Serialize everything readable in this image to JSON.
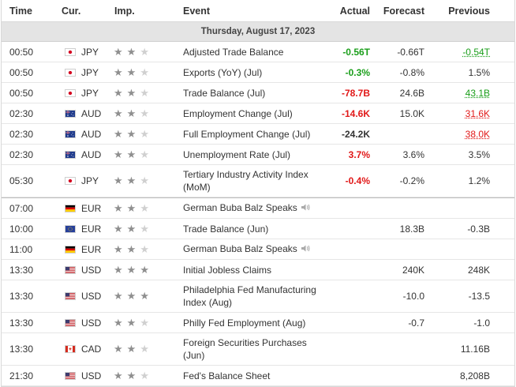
{
  "header": {
    "time": "Time",
    "cur": "Cur.",
    "imp": "Imp.",
    "event": "Event",
    "actual": "Actual",
    "forecast": "Forecast",
    "previous": "Previous"
  },
  "date_label": "Thursday, August 17, 2023",
  "icons": {
    "star": "star-icon",
    "speaker": "speaker-icon"
  },
  "colors": {
    "positive": "#1a9e1a",
    "negative": "#e11818",
    "star_on": "#8f8f8f",
    "star_off": "#d0d0d0"
  },
  "rows": [
    {
      "time": "00:50",
      "cur": "JPY",
      "flag": "jp",
      "stars": 2,
      "event": "Adjusted Trade Balance",
      "actual": "-0.56T",
      "actual_tone": "pos",
      "forecast": "-0.66T",
      "previous": "-0.54T",
      "prev_tone": "pos"
    },
    {
      "time": "00:50",
      "cur": "JPY",
      "flag": "jp",
      "stars": 2,
      "event": "Exports (YoY) (Jul)",
      "actual": "-0.3%",
      "actual_tone": "pos",
      "forecast": "-0.8%",
      "previous": "1.5%",
      "prev_tone": ""
    },
    {
      "time": "00:50",
      "cur": "JPY",
      "flag": "jp",
      "stars": 2,
      "event": "Trade Balance (Jul)",
      "actual": "-78.7B",
      "actual_tone": "neg",
      "forecast": "24.6B",
      "previous": "43.1B",
      "prev_tone": "pos"
    },
    {
      "time": "02:30",
      "cur": "AUD",
      "flag": "au",
      "stars": 2,
      "event": "Employment Change (Jul)",
      "actual": "-14.6K",
      "actual_tone": "neg",
      "forecast": "15.0K",
      "previous": "31.6K",
      "prev_tone": "neg"
    },
    {
      "time": "02:30",
      "cur": "AUD",
      "flag": "au",
      "stars": 2,
      "event": "Full Employment Change (Jul)",
      "actual": "-24.2K",
      "actual_tone": "",
      "forecast": "",
      "previous": "38.0K",
      "prev_tone": "neg"
    },
    {
      "time": "02:30",
      "cur": "AUD",
      "flag": "au",
      "stars": 2,
      "event": "Unemployment Rate (Jul)",
      "actual": "3.7%",
      "actual_tone": "neg",
      "forecast": "3.6%",
      "previous": "3.5%",
      "prev_tone": ""
    },
    {
      "time": "05:30",
      "cur": "JPY",
      "flag": "jp",
      "stars": 2,
      "event": "Tertiary Industry Activity Index (MoM)",
      "actual": "-0.4%",
      "actual_tone": "neg",
      "forecast": "-0.2%",
      "previous": "1.2%",
      "prev_tone": "",
      "tall": true
    },
    {
      "time": "07:00",
      "cur": "EUR",
      "flag": "de",
      "stars": 2,
      "event": "German Buba Balz Speaks",
      "speaker": true,
      "actual": "",
      "actual_tone": "",
      "forecast": "",
      "previous": "",
      "prev_tone": "",
      "sep": true
    },
    {
      "time": "10:00",
      "cur": "EUR",
      "flag": "eu",
      "stars": 2,
      "event": "Trade Balance (Jun)",
      "actual": "",
      "actual_tone": "",
      "forecast": "18.3B",
      "previous": "-0.3B",
      "prev_tone": ""
    },
    {
      "time": "11:00",
      "cur": "EUR",
      "flag": "de",
      "stars": 2,
      "event": "German Buba Balz Speaks",
      "speaker": true,
      "actual": "",
      "actual_tone": "",
      "forecast": "",
      "previous": "",
      "prev_tone": ""
    },
    {
      "time": "13:30",
      "cur": "USD",
      "flag": "us",
      "stars": 3,
      "event": "Initial Jobless Claims",
      "actual": "",
      "actual_tone": "",
      "forecast": "240K",
      "previous": "248K",
      "prev_tone": ""
    },
    {
      "time": "13:30",
      "cur": "USD",
      "flag": "us",
      "stars": 3,
      "event": "Philadelphia Fed Manufacturing Index (Aug)",
      "actual": "",
      "actual_tone": "",
      "forecast": "-10.0",
      "previous": "-13.5",
      "prev_tone": "",
      "tall": true
    },
    {
      "time": "13:30",
      "cur": "USD",
      "flag": "us",
      "stars": 2,
      "event": "Philly Fed Employment (Aug)",
      "actual": "",
      "actual_tone": "",
      "forecast": "-0.7",
      "previous": "-1.0",
      "prev_tone": ""
    },
    {
      "time": "13:30",
      "cur": "CAD",
      "flag": "ca",
      "stars": 2,
      "event": "Foreign Securities Purchases (Jun)",
      "actual": "",
      "actual_tone": "",
      "forecast": "",
      "previous": "11.16B",
      "prev_tone": "",
      "tall": true
    },
    {
      "time": "21:30",
      "cur": "USD",
      "flag": "us",
      "stars": 2,
      "event": "Fed's Balance Sheet",
      "actual": "",
      "actual_tone": "",
      "forecast": "",
      "previous": "8,208B",
      "prev_tone": ""
    }
  ]
}
